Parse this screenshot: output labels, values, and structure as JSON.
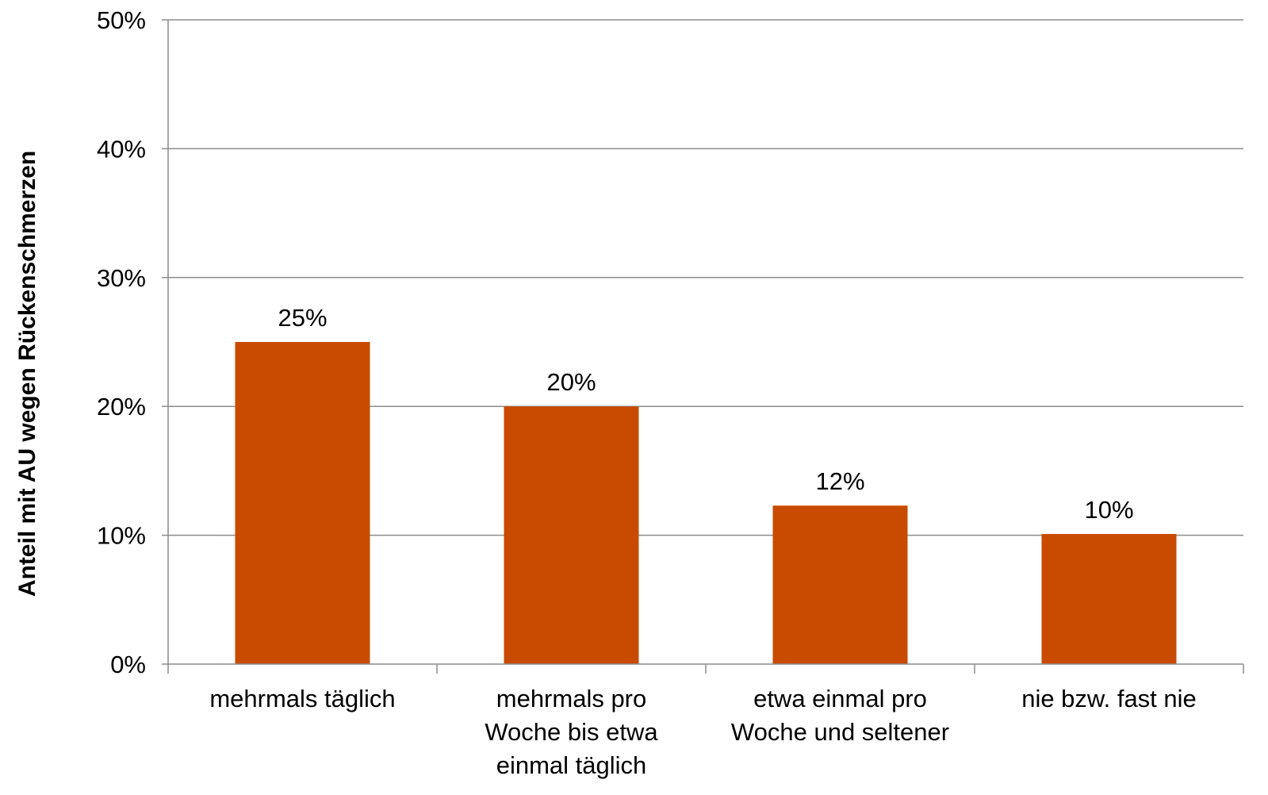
{
  "chart_data": {
    "type": "bar",
    "categories": [
      [
        "mehrmals täglich"
      ],
      [
        "mehrmals pro",
        "Woche bis etwa",
        "einmal täglich"
      ],
      [
        "etwa einmal pro",
        "Woche und seltener"
      ],
      [
        "nie bzw. fast nie"
      ]
    ],
    "values": [
      25,
      20,
      12.3,
      10.1
    ],
    "data_labels": [
      "25%",
      "20%",
      "12%",
      "10%"
    ],
    "ylabel": "Anteil mit AU wegen Rückenschmerzen",
    "ylim": [
      0,
      50
    ],
    "yticks": [
      0,
      10,
      20,
      30,
      40,
      50
    ],
    "ytick_labels": [
      "0%",
      "10%",
      "20%",
      "30%",
      "40%",
      "50%"
    ],
    "bar_color": "#C84B00",
    "grid": true,
    "legend": "none"
  }
}
